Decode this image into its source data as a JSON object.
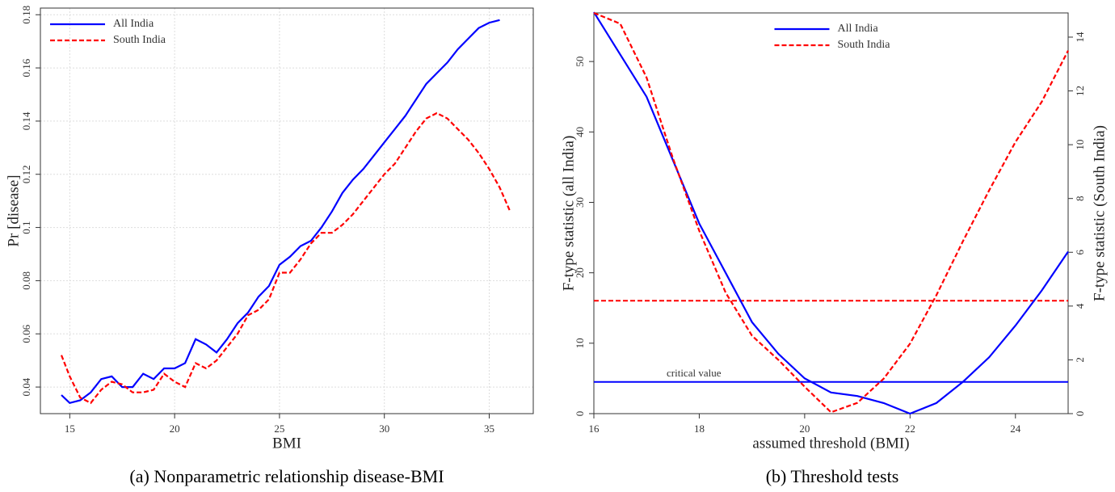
{
  "chart_data": [
    {
      "type": "line",
      "caption": "(a) Nonparametric relationship disease-BMI",
      "xlabel": "BMI",
      "ylabel": "Pr [disease]",
      "x": [
        14.6,
        15,
        15.5,
        16,
        16.5,
        17,
        17.5,
        18,
        18.5,
        19,
        19.5,
        20,
        20.5,
        21,
        21.5,
        22,
        22.5,
        23,
        23.5,
        24,
        24.5,
        25,
        25.5,
        26,
        26.5,
        27,
        27.5,
        28,
        28.5,
        29,
        29.5,
        30,
        30.5,
        31,
        31.5,
        32,
        32.5,
        33,
        33.5,
        34,
        34.5,
        35,
        35.5,
        36
      ],
      "series": [
        {
          "name": "All India",
          "color": "#0000ff",
          "style": "solid",
          "values": [
            0.037,
            0.034,
            0.035,
            0.038,
            0.043,
            0.044,
            0.04,
            0.04,
            0.045,
            0.043,
            0.047,
            0.047,
            0.049,
            0.058,
            0.056,
            0.053,
            0.058,
            0.064,
            0.068,
            0.074,
            0.078,
            0.086,
            0.089,
            0.093,
            0.095,
            0.1,
            0.106,
            0.113,
            0.118,
            0.122,
            0.127,
            0.132,
            0.137,
            0.142,
            0.148,
            0.154,
            0.158,
            0.162,
            0.167,
            0.171,
            0.175,
            0.177,
            0.178,
            null
          ]
        },
        {
          "name": "South India",
          "color": "#ff0000",
          "style": "dashed",
          "values": [
            0.052,
            0.044,
            0.036,
            0.034,
            0.039,
            0.042,
            0.041,
            0.038,
            0.038,
            0.039,
            0.045,
            0.042,
            0.04,
            0.049,
            0.047,
            0.05,
            0.055,
            0.06,
            0.067,
            0.069,
            0.073,
            0.083,
            0.083,
            0.088,
            0.094,
            0.098,
            0.098,
            0.101,
            0.105,
            0.11,
            0.115,
            0.12,
            0.124,
            0.13,
            0.136,
            0.141,
            0.143,
            0.141,
            0.137,
            0.133,
            0.128,
            0.122,
            0.115,
            0.106
          ]
        }
      ],
      "xlim": [
        13.6,
        37.1
      ],
      "xticks": [
        15,
        20,
        25,
        30,
        35
      ],
      "ylim": [
        0.03,
        0.1825
      ],
      "yticks": [
        0.04,
        0.06,
        0.08,
        0.1,
        0.12,
        0.14,
        0.16,
        0.18
      ],
      "grid": true,
      "legend": "upper left"
    },
    {
      "type": "line",
      "caption": "(b) Threshold tests",
      "xlabel": "assumed threshold (BMI)",
      "ylabel": "F-type statistic (all India)",
      "y2label": "F-type statistic (South India)",
      "x": [
        16,
        16.5,
        17,
        17.5,
        18,
        18.5,
        19,
        19.5,
        20,
        20.5,
        21,
        21.5,
        22,
        22.5,
        23,
        23.5,
        24,
        24.5,
        25
      ],
      "series": [
        {
          "name": "All India",
          "color": "#0000ff",
          "style": "solid",
          "axis": "y",
          "values": [
            57,
            51,
            45,
            36,
            27,
            20,
            13,
            8.5,
            5,
            3,
            2.5,
            1.5,
            0,
            1.5,
            4.5,
            8,
            12.5,
            17.5,
            23
          ]
        },
        {
          "name": "South India",
          "color": "#ff0000",
          "style": "dashed",
          "axis": "y2",
          "values": [
            14.9,
            14.5,
            12.5,
            9.5,
            6.8,
            4.5,
            2.9,
            2.0,
            1.0,
            0.05,
            0.4,
            1.3,
            2.6,
            4.4,
            6.4,
            8.3,
            10.1,
            11.6,
            13.5
          ]
        }
      ],
      "reference_lines": [
        {
          "value": 4.5,
          "axis": "y",
          "color": "#0000ff",
          "style": "solid"
        },
        {
          "value": 4.2,
          "axis": "y2",
          "color": "#ff0000",
          "style": "dashed"
        }
      ],
      "annotation": "critical value",
      "xlim": [
        16,
        25
      ],
      "xticks": [
        16,
        18,
        20,
        22,
        24
      ],
      "ylim": [
        0,
        56.9
      ],
      "yticks": [
        0,
        10,
        20,
        30,
        40,
        50
      ],
      "y2lim": [
        0,
        14.9
      ],
      "y2ticks": [
        0,
        2,
        4,
        6,
        8,
        10,
        12,
        14
      ],
      "grid": false,
      "legend": "upper center"
    }
  ]
}
